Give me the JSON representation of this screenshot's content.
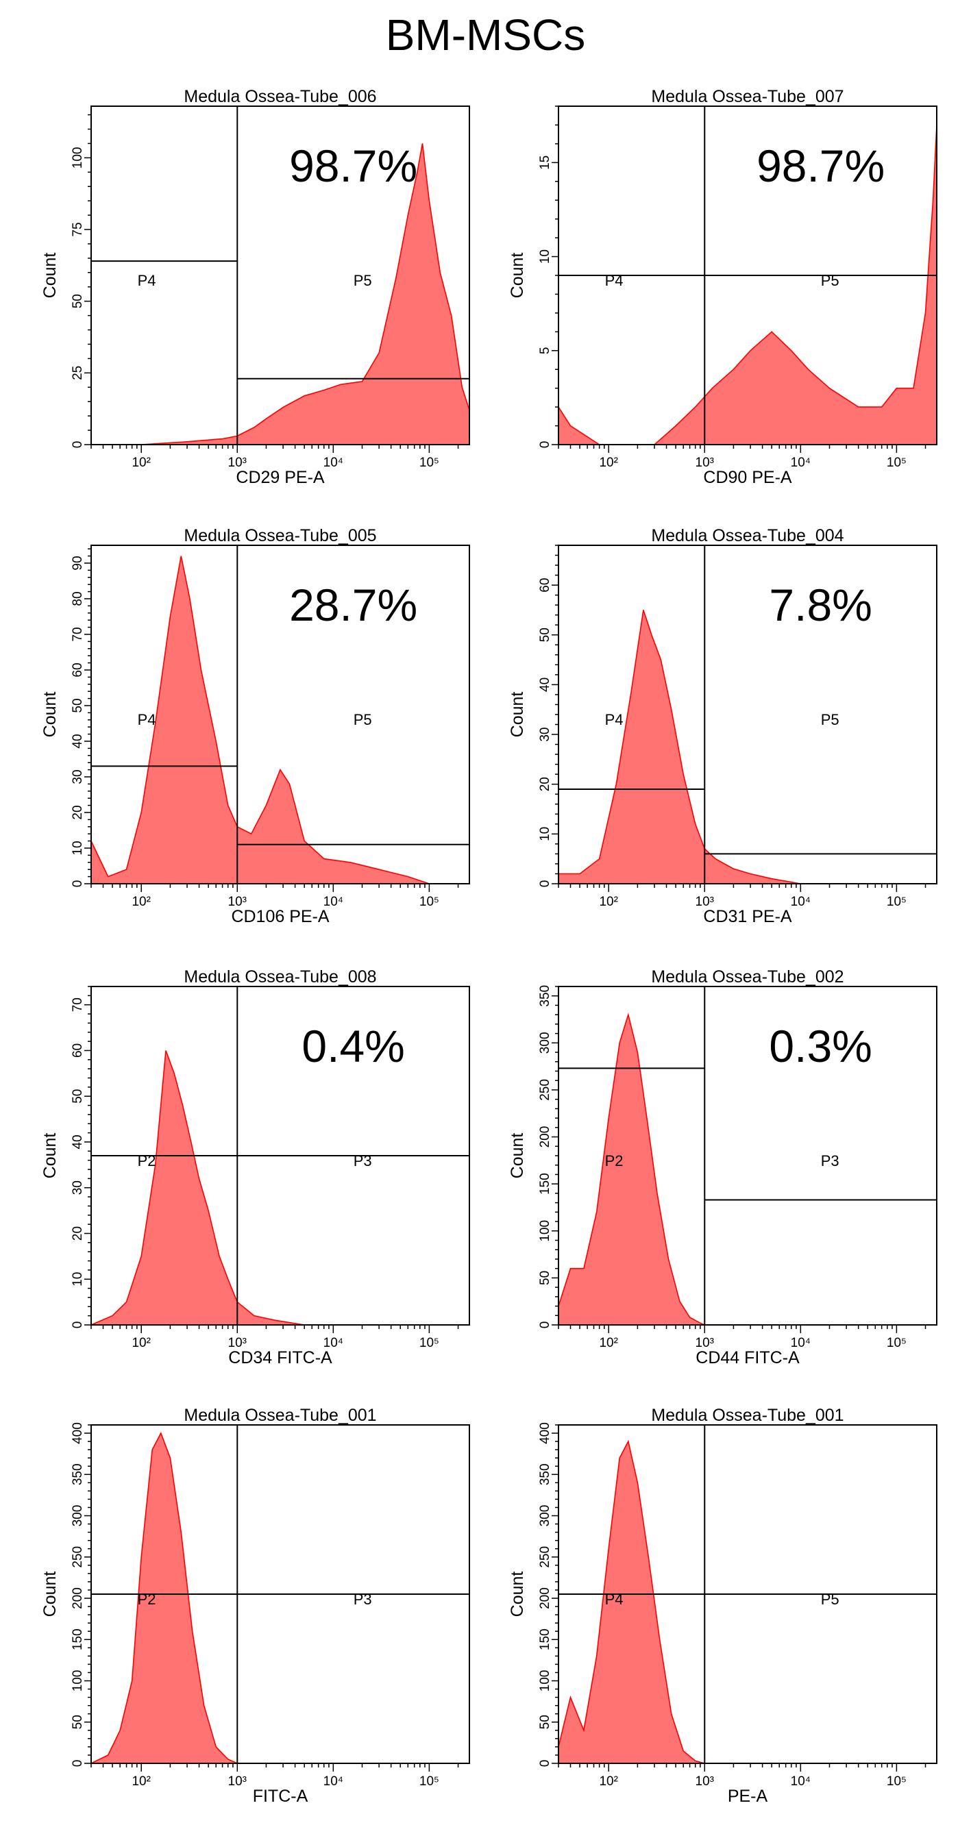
{
  "figure_title": "BM-MSCs",
  "chart_data": [
    {
      "type": "area",
      "title": "Medula Ossea-Tube_006",
      "xlabel": "CD29 PE-A",
      "ylabel": "Count",
      "x_scale": "log",
      "xlim": [
        30,
        262144
      ],
      "ylim": [
        0,
        118
      ],
      "x_ticks": [
        "10²",
        "10³",
        "10⁴",
        "10⁵"
      ],
      "y_ticks": [
        0,
        25,
        50,
        75,
        100
      ],
      "percent": "98.7%",
      "gate_split_x": 1000,
      "gate_left": {
        "label": "P4",
        "level": 64
      },
      "gate_right": {
        "label": "P5",
        "level": 23
      },
      "x": [
        100,
        300,
        700,
        1000,
        1500,
        2000,
        3000,
        5000,
        8000,
        12000,
        20000,
        30000,
        45000,
        60000,
        75000,
        85000,
        100000,
        130000,
        170000,
        220000,
        262144
      ],
      "y": [
        0,
        1,
        2,
        3,
        6,
        9,
        13,
        17,
        19,
        21,
        22,
        32,
        58,
        80,
        95,
        105,
        85,
        60,
        45,
        20,
        12
      ]
    },
    {
      "type": "area",
      "title": "Medula Ossea-Tube_007",
      "xlabel": "CD90 PE-A",
      "ylabel": "Count",
      "x_scale": "log",
      "xlim": [
        30,
        262144
      ],
      "ylim": [
        0,
        18
      ],
      "x_ticks": [
        "10²",
        "10³",
        "10⁴",
        "10⁵"
      ],
      "y_ticks": [
        0,
        5,
        10,
        15
      ],
      "percent": "98.7%",
      "gate_split_x": 1000,
      "gate_left": {
        "label": "P4",
        "level": 9
      },
      "gate_right": {
        "label": "P5",
        "level": 9
      },
      "x": [
        30,
        40,
        80,
        150,
        300,
        500,
        800,
        1200,
        2000,
        3000,
        5000,
        8000,
        12000,
        20000,
        40000,
        70000,
        100000,
        150000,
        200000,
        240000,
        262144
      ],
      "y": [
        2,
        1,
        0,
        0,
        0,
        1,
        2,
        3,
        4,
        5,
        6,
        5,
        4,
        3,
        2,
        2,
        3,
        3,
        7,
        13,
        17
      ]
    },
    {
      "type": "area",
      "title": "Medula Ossea-Tube_005",
      "xlabel": "CD106 PE-A",
      "ylabel": "Count",
      "x_scale": "log",
      "xlim": [
        30,
        262144
      ],
      "ylim": [
        0,
        95
      ],
      "x_ticks": [
        "10²",
        "10³",
        "10⁴",
        "10⁵"
      ],
      "y_ticks": [
        0,
        10,
        20,
        30,
        40,
        50,
        60,
        70,
        80,
        90
      ],
      "percent": "28.7%",
      "gate_split_x": 1000,
      "gate_left": {
        "label": "P4",
        "level": 33
      },
      "gate_right": {
        "label": "P5",
        "level": 11
      },
      "x": [
        30,
        45,
        70,
        100,
        140,
        200,
        260,
        320,
        420,
        600,
        800,
        1000,
        1400,
        2000,
        2800,
        3500,
        5000,
        8000,
        15000,
        30000,
        60000,
        100000,
        262144
      ],
      "y": [
        12,
        2,
        4,
        20,
        45,
        75,
        92,
        80,
        60,
        40,
        22,
        16,
        14,
        22,
        32,
        28,
        12,
        7,
        6,
        4,
        2,
        0,
        0
      ]
    },
    {
      "type": "area",
      "title": "Medula Ossea-Tube_004",
      "xlabel": "CD31 PE-A",
      "ylabel": "Count",
      "x_scale": "log",
      "xlim": [
        30,
        262144
      ],
      "ylim": [
        0,
        68
      ],
      "x_ticks": [
        "10²",
        "10³",
        "10⁴",
        "10⁵"
      ],
      "y_ticks": [
        0,
        10,
        20,
        30,
        40,
        50,
        60
      ],
      "percent": "7.8%",
      "gate_split_x": 1000,
      "gate_left": {
        "label": "P4",
        "level": 19
      },
      "gate_right": {
        "label": "P5",
        "level": 6
      },
      "x": [
        30,
        50,
        80,
        120,
        170,
        230,
        280,
        350,
        450,
        600,
        800,
        1000,
        1300,
        2000,
        3000,
        5000,
        10000,
        262144
      ],
      "y": [
        2,
        2,
        5,
        20,
        38,
        55,
        50,
        45,
        35,
        22,
        12,
        7,
        5,
        3,
        2,
        1,
        0,
        0
      ]
    },
    {
      "type": "area",
      "title": "Medula Ossea-Tube_008",
      "xlabel": "CD34 FITC-A",
      "ylabel": "Count",
      "x_scale": "log",
      "xlim": [
        30,
        262144
      ],
      "ylim": [
        0,
        74
      ],
      "x_ticks": [
        "10²",
        "10³",
        "10⁴",
        "10⁵"
      ],
      "y_ticks": [
        0,
        10,
        20,
        30,
        40,
        50,
        60,
        70
      ],
      "percent": "0.4%",
      "gate_split_x": 1000,
      "gate_left": {
        "label": "P2",
        "level": 37
      },
      "gate_right": {
        "label": "P3",
        "level": 37
      },
      "x": [
        30,
        50,
        70,
        100,
        140,
        180,
        220,
        270,
        330,
        400,
        500,
        650,
        800,
        1000,
        1500,
        2500,
        5000,
        262144
      ],
      "y": [
        0,
        2,
        5,
        15,
        35,
        60,
        55,
        48,
        40,
        32,
        25,
        15,
        10,
        5,
        2,
        1,
        0,
        0
      ]
    },
    {
      "type": "area",
      "title": "Medula Ossea-Tube_002",
      "xlabel": "CD44 FITC-A",
      "ylabel": "Count",
      "x_scale": "log",
      "xlim": [
        30,
        262144
      ],
      "ylim": [
        0,
        360
      ],
      "x_ticks": [
        "10²",
        "10³",
        "10⁴",
        "10⁵"
      ],
      "y_ticks": [
        0,
        50,
        100,
        150,
        200,
        250,
        300,
        350
      ],
      "percent": "0.3%",
      "gate_split_x": 1000,
      "gate_left": {
        "label": "P2",
        "level": 273
      },
      "gate_right": {
        "label": "P3",
        "level": 133
      },
      "x": [
        30,
        40,
        55,
        75,
        100,
        130,
        160,
        200,
        250,
        320,
        420,
        550,
        700,
        900,
        1000,
        262144
      ],
      "y": [
        20,
        60,
        60,
        120,
        220,
        300,
        330,
        290,
        220,
        140,
        70,
        25,
        8,
        2,
        0,
        0
      ]
    },
    {
      "type": "area",
      "title": "Medula Ossea-Tube_001",
      "xlabel": "FITC-A",
      "ylabel": "Count",
      "x_scale": "log",
      "xlim": [
        30,
        262144
      ],
      "ylim": [
        0,
        410
      ],
      "x_ticks": [
        "10²",
        "10³",
        "10⁴",
        "10⁵"
      ],
      "y_ticks": [
        0,
        50,
        100,
        150,
        200,
        250,
        300,
        350,
        400
      ],
      "percent": "",
      "gate_split_x": 1000,
      "gate_left": {
        "label": "P2",
        "level": 205
      },
      "gate_right": {
        "label": "P3",
        "level": 205
      },
      "x": [
        30,
        45,
        60,
        80,
        100,
        130,
        160,
        200,
        260,
        340,
        450,
        600,
        800,
        1000,
        262144
      ],
      "y": [
        0,
        10,
        40,
        100,
        250,
        380,
        400,
        370,
        280,
        160,
        70,
        20,
        5,
        0,
        0
      ]
    },
    {
      "type": "area",
      "title": "Medula Ossea-Tube_001",
      "xlabel": "PE-A",
      "ylabel": "Count",
      "x_scale": "log",
      "xlim": [
        30,
        262144
      ],
      "ylim": [
        0,
        410
      ],
      "x_ticks": [
        "10²",
        "10³",
        "10⁴",
        "10⁵"
      ],
      "y_ticks": [
        0,
        50,
        100,
        150,
        200,
        250,
        300,
        350,
        400
      ],
      "percent": "",
      "gate_split_x": 1000,
      "gate_left": {
        "label": "P4",
        "level": 205
      },
      "gate_right": {
        "label": "P5",
        "level": 205
      },
      "x": [
        30,
        40,
        55,
        75,
        100,
        130,
        160,
        200,
        260,
        340,
        450,
        600,
        800,
        1000,
        262144
      ],
      "y": [
        20,
        80,
        40,
        130,
        260,
        370,
        390,
        340,
        250,
        150,
        60,
        15,
        3,
        0,
        0
      ]
    }
  ]
}
